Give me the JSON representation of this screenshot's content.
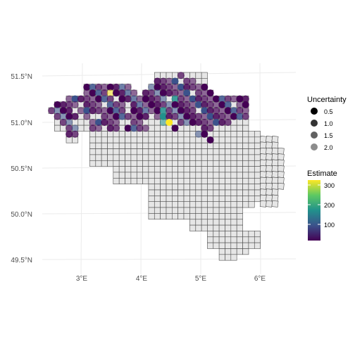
{
  "map": {
    "lat_labels": [
      "51.5°N",
      "51.0°N",
      "50.5°N",
      "50.0°N",
      "49.5°N"
    ],
    "lon_labels": [
      "3°E",
      "4°E",
      "5°E",
      "6°E"
    ],
    "grid_fill": "#e6e6e6",
    "grid_stroke": "#4d4d4d"
  },
  "legend": {
    "uncertainty": {
      "title": "Uncertainty",
      "levels": [
        {
          "label": "0.5",
          "alpha": 1.0
        },
        {
          "label": "1.0",
          "alpha": 0.8
        },
        {
          "label": "1.5",
          "alpha": 0.62
        },
        {
          "label": "2.0",
          "alpha": 0.45
        }
      ]
    },
    "estimate": {
      "title": "Estimate",
      "ticks": [
        "100",
        "200",
        "300"
      ],
      "colors": [
        "#440154",
        "#3b528b",
        "#21918c",
        "#5ec962",
        "#fde725"
      ]
    }
  }
}
